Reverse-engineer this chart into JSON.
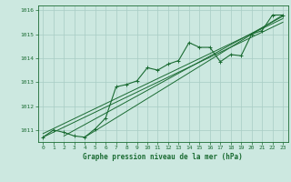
{
  "title": "Graphe pression niveau de la mer (hPa)",
  "background_color": "#cce8e0",
  "plot_bg_color": "#cce8e0",
  "grid_color": "#a8ccc4",
  "line_color": "#1a6b32",
  "xlim": [
    -0.5,
    23.5
  ],
  "ylim": [
    1010.5,
    1016.2
  ],
  "xticks": [
    0,
    1,
    2,
    3,
    4,
    5,
    6,
    7,
    8,
    9,
    10,
    11,
    12,
    13,
    14,
    15,
    16,
    17,
    18,
    19,
    20,
    21,
    22,
    23
  ],
  "yticks": [
    1011,
    1012,
    1013,
    1014,
    1015,
    1016
  ],
  "main_data": [
    [
      0,
      1010.7
    ],
    [
      1,
      1011.0
    ],
    [
      2,
      1010.9
    ],
    [
      3,
      1010.75
    ],
    [
      4,
      1010.7
    ],
    [
      5,
      1011.05
    ],
    [
      6,
      1011.5
    ],
    [
      7,
      1012.8
    ],
    [
      8,
      1012.9
    ],
    [
      9,
      1013.05
    ],
    [
      10,
      1013.6
    ],
    [
      11,
      1013.5
    ],
    [
      12,
      1013.75
    ],
    [
      13,
      1013.9
    ],
    [
      14,
      1014.65
    ],
    [
      15,
      1014.45
    ],
    [
      16,
      1014.45
    ],
    [
      17,
      1013.85
    ],
    [
      18,
      1014.15
    ],
    [
      19,
      1014.1
    ],
    [
      20,
      1015.0
    ],
    [
      21,
      1015.15
    ],
    [
      22,
      1015.8
    ],
    [
      23,
      1015.8
    ]
  ],
  "trend_line1": [
    [
      0,
      1010.7
    ],
    [
      23,
      1015.5
    ]
  ],
  "trend_line2": [
    [
      0,
      1010.85
    ],
    [
      23,
      1015.65
    ]
  ],
  "trend_line3": [
    [
      2,
      1010.75
    ],
    [
      23,
      1015.75
    ]
  ],
  "trend_line4": [
    [
      4,
      1010.7
    ],
    [
      23,
      1015.8
    ]
  ]
}
